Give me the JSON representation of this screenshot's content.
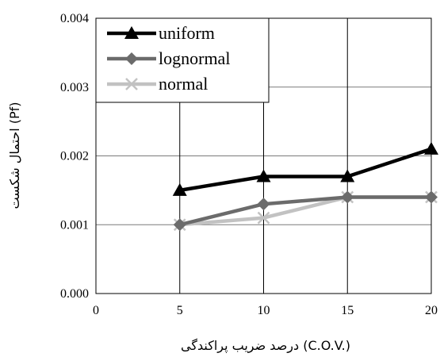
{
  "chart_data": {
    "type": "line",
    "title": "",
    "xlabel": "درصد ضریب پراکندگی (C.O.V.)",
    "ylabel": "احتمال شکست (Pf)",
    "xlim": [
      0,
      20
    ],
    "ylim": [
      0,
      0.004
    ],
    "x_ticks": [
      "0",
      "5",
      "10",
      "15",
      "20"
    ],
    "y_ticks": [
      "0.000",
      "0.001",
      "0.002",
      "0.003",
      "0.004"
    ],
    "grid": true,
    "legend_position": "top-left",
    "x": [
      5,
      10,
      15,
      20
    ],
    "series": [
      {
        "name": "uniform",
        "values": [
          0.0015,
          0.0017,
          0.0017,
          0.0021
        ],
        "color": "#000000",
        "marker": "triangle"
      },
      {
        "name": "lognormal",
        "values": [
          0.001,
          0.0013,
          0.0014,
          0.0014
        ],
        "color": "#6b6b6b",
        "marker": "diamond"
      },
      {
        "name": "normal",
        "values": [
          0.001,
          0.0011,
          0.0014,
          0.0014
        ],
        "color": "#c2c2c2",
        "marker": "x"
      }
    ]
  }
}
